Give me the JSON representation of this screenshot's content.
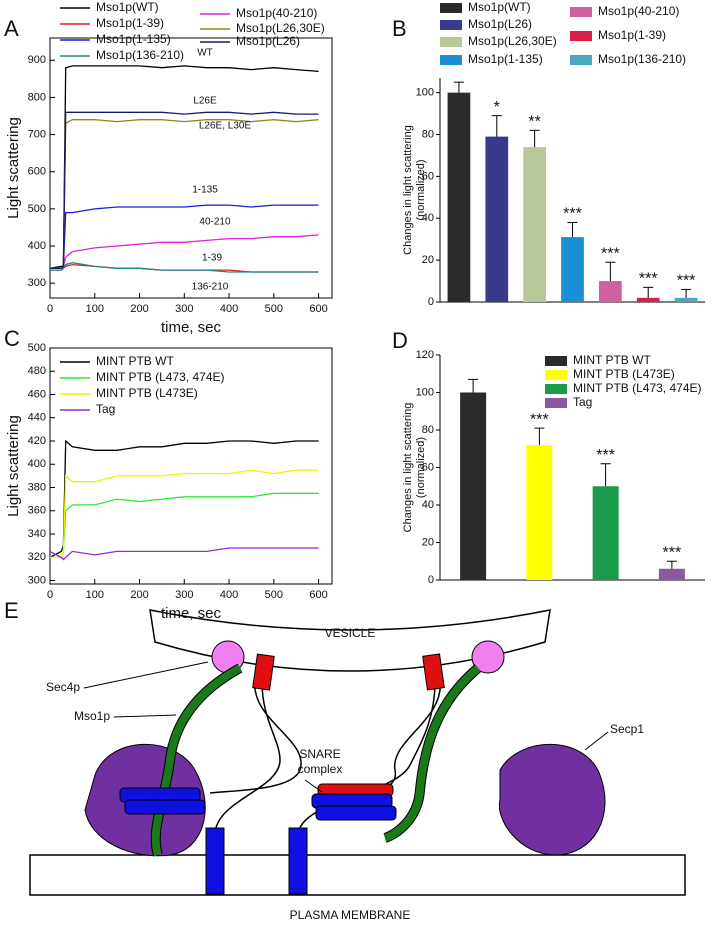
{
  "chart_data": [
    {
      "type": "line",
      "panel_label": "A",
      "xlabel": "time, sec",
      "ylabel": "Light scattering",
      "x": [
        0,
        25,
        30,
        35,
        50,
        100,
        150,
        200,
        250,
        300,
        350,
        400,
        450,
        500,
        550,
        600
      ],
      "series": [
        {
          "name": "Mso1p(WT)",
          "color": "#000000",
          "values": [
            340,
            345,
            345,
            880,
            885,
            885,
            885,
            885,
            880,
            885,
            880,
            880,
            875,
            880,
            875,
            870
          ]
        },
        {
          "name": "Mso1p(1-39)",
          "color": "#e02020",
          "values": [
            335,
            335,
            340,
            345,
            350,
            345,
            340,
            340,
            335,
            335,
            335,
            335,
            330,
            330,
            330,
            330
          ]
        },
        {
          "name": "Mso1p(1-135)",
          "color": "#1a1ae0",
          "values": [
            340,
            340,
            345,
            490,
            490,
            500,
            505,
            505,
            505,
            505,
            510,
            510,
            505,
            510,
            510,
            510
          ]
        },
        {
          "name": "Mso1p(136-210)",
          "color": "#1a8a8a",
          "values": [
            335,
            335,
            340,
            350,
            355,
            345,
            340,
            340,
            335,
            335,
            335,
            330,
            330,
            330,
            330,
            330
          ]
        },
        {
          "name": "Mso1p(40-210)",
          "color": "#e020e0",
          "values": [
            340,
            340,
            345,
            370,
            385,
            395,
            400,
            405,
            410,
            410,
            415,
            420,
            420,
            425,
            425,
            430
          ]
        },
        {
          "name": "Mso1p(L26,30E)",
          "color": "#8b8b1a",
          "values": [
            340,
            340,
            345,
            730,
            740,
            740,
            735,
            740,
            740,
            735,
            740,
            740,
            735,
            740,
            735,
            740
          ]
        },
        {
          "name": "Mso1p(L26)",
          "color": "#1a1a6e",
          "values": [
            340,
            340,
            345,
            760,
            760,
            760,
            760,
            760,
            760,
            755,
            760,
            760,
            755,
            760,
            755,
            755
          ]
        }
      ],
      "annotations": [
        "WT",
        "L26E",
        "L26E, L30E",
        "1-135",
        "40-210",
        "1-39",
        "136-210"
      ],
      "xlim": [
        0,
        630
      ],
      "xticks": [
        0,
        100,
        200,
        300,
        400,
        500,
        600
      ],
      "ylim": [
        260,
        960
      ],
      "yticks": [
        300,
        400,
        500,
        600,
        700,
        800,
        900
      ]
    },
    {
      "type": "bar",
      "panel_label": "B",
      "ylabel": [
        "Changes in light scattering",
        "(normalized)"
      ],
      "series": [
        {
          "name": "Mso1p(WT)",
          "color": "#2b2b2b",
          "values": [
            100
          ],
          "errors": [
            5
          ]
        },
        {
          "name": "Mso1p(L26)",
          "color": "#3a3a8c",
          "values": [
            79
          ],
          "errors": [
            10
          ],
          "significance": "*"
        },
        {
          "name": "Mso1p(L26,30E)",
          "color": "#b8c898",
          "values": [
            74
          ],
          "errors": [
            8
          ],
          "significance": "**"
        },
        {
          "name": "Mso1p(1-135)",
          "color": "#1a8fd6",
          "values": [
            31
          ],
          "errors": [
            7
          ],
          "significance": "***"
        },
        {
          "name": "Mso1p(40-210)",
          "color": "#d060a0",
          "values": [
            10
          ],
          "errors": [
            9
          ],
          "significance": "***"
        },
        {
          "name": "Mso1p(1-39)",
          "color": "#d8204a",
          "values": [
            2
          ],
          "errors": [
            5
          ],
          "significance": "***"
        },
        {
          "name": "Mso1p(136-210)",
          "color": "#4aa8c0",
          "values": [
            2
          ],
          "errors": [
            4
          ],
          "significance": "***"
        }
      ],
      "ylim": [
        0,
        107
      ],
      "yticks": [
        0,
        20,
        40,
        60,
        80,
        100
      ]
    },
    {
      "type": "line",
      "panel_label": "C",
      "xlabel": "time, sec",
      "ylabel": "Light scattering",
      "x": [
        0,
        25,
        30,
        35,
        50,
        100,
        150,
        200,
        250,
        300,
        350,
        400,
        450,
        500,
        550,
        600
      ],
      "series": [
        {
          "name": "MINT PTB WT",
          "color": "#000000",
          "values": [
            320,
            325,
            330,
            420,
            415,
            412,
            412,
            415,
            415,
            418,
            418,
            420,
            420,
            418,
            420,
            420
          ]
        },
        {
          "name": "MINT PTB (L473, 474E)",
          "color": "#33e633",
          "values": [
            320,
            320,
            325,
            360,
            365,
            365,
            370,
            368,
            370,
            372,
            372,
            372,
            372,
            375,
            375,
            375
          ]
        },
        {
          "name": "MINT PTB (L473E)",
          "color": "#f0f000",
          "values": [
            320,
            320,
            325,
            390,
            385,
            385,
            390,
            390,
            390,
            392,
            392,
            392,
            395,
            392,
            395,
            395
          ]
        },
        {
          "name": "Tag",
          "color": "#8a2be2",
          "values": [
            325,
            320,
            318,
            320,
            325,
            322,
            325,
            325,
            325,
            325,
            325,
            328,
            328,
            328,
            328,
            328
          ]
        }
      ],
      "xlim": [
        0,
        630
      ],
      "xticks": [
        0,
        100,
        200,
        300,
        400,
        500,
        600
      ],
      "ylim": [
        297,
        500
      ],
      "yticks": [
        300,
        320,
        340,
        360,
        380,
        400,
        420,
        440,
        460,
        480,
        500
      ]
    },
    {
      "type": "bar",
      "panel_label": "D",
      "ylabel": [
        "Changes in light scattering",
        "(normalized)"
      ],
      "series": [
        {
          "name": "MINT PTB WT",
          "color": "#2b2b2b",
          "values": [
            100
          ],
          "errors": [
            7
          ]
        },
        {
          "name": "MINT PTB (L473E)",
          "color": "#ffff00",
          "values": [
            72
          ],
          "errors": [
            9
          ],
          "significance": "***"
        },
        {
          "name": "MINT PTB (L473, 474E)",
          "color": "#1a9a4a",
          "values": [
            50
          ],
          "errors": [
            12
          ],
          "significance": "***"
        },
        {
          "name": "Tag",
          "color": "#8a5aa0",
          "values": [
            6
          ],
          "errors": [
            4
          ],
          "significance": "***"
        }
      ],
      "ylim": [
        0,
        120
      ],
      "yticks": [
        0,
        20,
        40,
        60,
        80,
        100,
        120
      ]
    }
  ],
  "diagram": {
    "panel_label": "E",
    "vesicle": "VESICLE",
    "sec4p": "Sec4p",
    "mso1p": "Mso1p",
    "snare": [
      "SNARE",
      "complex"
    ],
    "secp1": "Secp1",
    "membrane": "PLASMA MEMBRANE"
  }
}
